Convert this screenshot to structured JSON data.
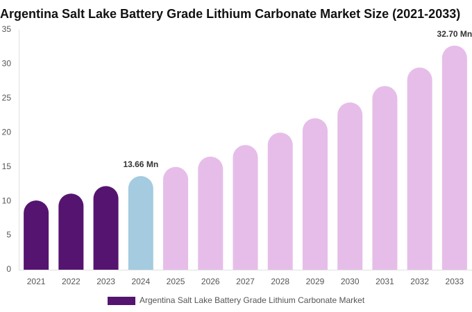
{
  "chart_data": {
    "type": "bar",
    "title": "Argentina Salt Lake Battery Grade Lithium Carbonate Market Size (2021-2033)",
    "categories": [
      "2021",
      "2022",
      "2023",
      "2024",
      "2025",
      "2026",
      "2027",
      "2028",
      "2029",
      "2030",
      "2031",
      "2032",
      "2033"
    ],
    "series": [
      {
        "name": "Argentina Salt Lake Battery Grade Lithium Carbonate Market",
        "color": "#551470",
        "colors": [
          "#551470",
          "#551470",
          "#551470",
          "#a4cbe0",
          "#e6bde9",
          "#e6bde9",
          "#e6bde9",
          "#e6bde9",
          "#e6bde9",
          "#e6bde9",
          "#e6bde9",
          "#e6bde9",
          "#e6bde9"
        ],
        "values": [
          10.1,
          11.1,
          12.2,
          13.66,
          15.0,
          16.5,
          18.2,
          20.0,
          22.1,
          24.4,
          26.8,
          29.5,
          32.7
        ],
        "value_labels": [
          null,
          null,
          null,
          "13.66 Mn",
          null,
          null,
          null,
          null,
          null,
          null,
          null,
          null,
          "32.70 Mn"
        ]
      }
    ],
    "ylim": [
      0,
      35
    ],
    "yticks": [
      0,
      5,
      10,
      15,
      20,
      25,
      30,
      35
    ]
  }
}
